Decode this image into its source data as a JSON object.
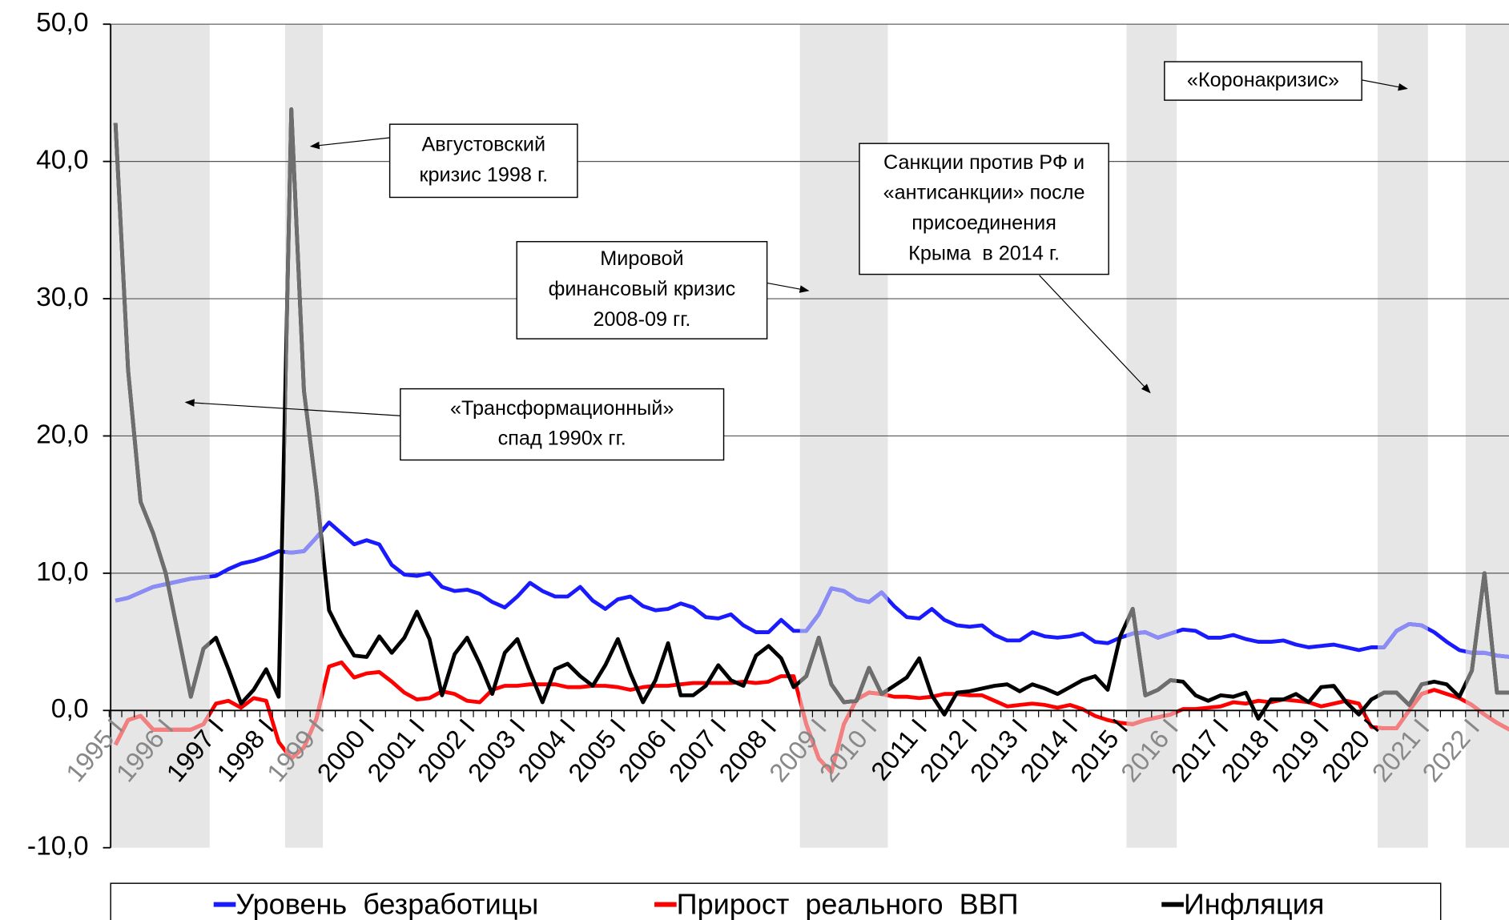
{
  "chart_data": {
    "type": "line",
    "categories": [
      "1995 I",
      null,
      null,
      null,
      "1996 I",
      null,
      null,
      null,
      "1997 I",
      null,
      null,
      null,
      "1998 I",
      null,
      null,
      null,
      "1999 I",
      null,
      null,
      null,
      "2000 I",
      null,
      null,
      null,
      "2001 I",
      null,
      null,
      null,
      "2002 I",
      null,
      null,
      null,
      "2003 I",
      null,
      null,
      null,
      "2004 I",
      null,
      null,
      null,
      "2005 I",
      null,
      null,
      null,
      "2006 I",
      null,
      null,
      null,
      "2007 I",
      null,
      null,
      null,
      "2008 I",
      null,
      null,
      null,
      "2009 I",
      null,
      null,
      null,
      "2010 I",
      null,
      null,
      null,
      "2011 I",
      null,
      null,
      null,
      "2012 I",
      null,
      null,
      null,
      "2013 I",
      null,
      null,
      null,
      "2014 I",
      null,
      null,
      null,
      "2015 I",
      null,
      null,
      null,
      "2016 I",
      null,
      null,
      null,
      "2017 I",
      null,
      null,
      null,
      "2018 I",
      null,
      null,
      null,
      "2019 I",
      null,
      null,
      null,
      "2020 I",
      null,
      null,
      null,
      "2021 I",
      null,
      null,
      null,
      "2022 I",
      null,
      null,
      null
    ],
    "series": [
      {
        "name": "Уровень  безработицы",
        "color": "#1a1aff",
        "light_color": "#8c8cf5",
        "values": [
          8.0,
          8.2,
          8.6,
          9.0,
          9.2,
          9.4,
          9.6,
          9.7,
          9.8,
          10.3,
          10.7,
          10.9,
          11.2,
          11.6,
          11.5,
          11.6,
          12.6,
          13.7,
          12.9,
          12.1,
          12.4,
          12.1,
          10.6,
          9.9,
          9.8,
          10.0,
          9.0,
          8.7,
          8.8,
          8.5,
          7.9,
          7.5,
          8.3,
          9.3,
          8.7,
          8.3,
          8.3,
          9.0,
          8.0,
          7.4,
          8.1,
          8.3,
          7.6,
          7.3,
          7.4,
          7.8,
          7.5,
          6.8,
          6.7,
          7.0,
          6.2,
          5.7,
          5.7,
          6.6,
          5.8,
          5.8,
          7.0,
          8.9,
          8.7,
          8.1,
          7.9,
          8.6,
          7.6,
          6.8,
          6.7,
          7.4,
          6.6,
          6.2,
          6.1,
          6.2,
          5.5,
          5.1,
          5.1,
          5.7,
          5.4,
          5.3,
          5.4,
          5.6,
          5.0,
          4.9,
          5.3,
          5.6,
          5.7,
          5.3,
          5.6,
          5.9,
          5.8,
          5.3,
          5.3,
          5.5,
          5.2,
          5.0,
          5.0,
          5.1,
          4.8,
          4.6,
          4.7,
          4.8,
          4.6,
          4.4,
          4.6,
          4.6,
          5.8,
          6.3,
          6.2,
          5.7,
          5.0,
          4.4,
          4.2,
          4.2,
          4.0,
          3.9
        ]
      },
      {
        "name": "Прирост  реального  ВВП",
        "color": "#ff0000",
        "light_color": "#f28080",
        "values": [
          -2.5,
          -0.7,
          -0.4,
          -1.4,
          -1.4,
          -1.4,
          -1.4,
          -1.0,
          0.5,
          0.7,
          0.2,
          0.9,
          0.7,
          -2.3,
          -3.5,
          -2.7,
          -0.6,
          3.2,
          3.5,
          2.4,
          2.7,
          2.8,
          2.1,
          1.3,
          0.8,
          0.9,
          1.4,
          1.2,
          0.7,
          0.6,
          1.5,
          1.8,
          1.8,
          1.9,
          1.9,
          1.9,
          1.7,
          1.7,
          1.8,
          1.8,
          1.7,
          1.5,
          1.7,
          1.8,
          1.8,
          1.9,
          2.0,
          2.0,
          2.0,
          2.0,
          2.1,
          2.0,
          2.1,
          2.5,
          2.5,
          -1.0,
          -3.5,
          -4.5,
          -1.0,
          0.8,
          1.3,
          1.2,
          1.0,
          1.0,
          0.9,
          1.0,
          1.2,
          1.2,
          1.1,
          1.1,
          0.7,
          0.3,
          0.4,
          0.5,
          0.4,
          0.2,
          0.4,
          0.1,
          -0.4,
          -0.7,
          -0.9,
          -1.0,
          -0.7,
          -0.5,
          -0.3,
          0.1,
          0.1,
          0.2,
          0.3,
          0.6,
          0.5,
          0.7,
          0.6,
          0.8,
          0.7,
          0.6,
          0.3,
          0.5,
          0.7,
          0.5,
          -1.2,
          -1.3,
          -1.3,
          0.0,
          1.2,
          1.5,
          1.2,
          0.9,
          0.4,
          -0.3,
          -0.9,
          -1.4
        ]
      },
      {
        "name": "Инфляция",
        "color": "#000000",
        "light_color": "#6e6e6e",
        "values": [
          42.8,
          24.8,
          15.2,
          12.9,
          10.0,
          5.5,
          1.0,
          4.5,
          5.3,
          3.0,
          0.5,
          1.5,
          3.0,
          1.0,
          43.8,
          23.3,
          16.0,
          7.3,
          5.5,
          4.0,
          3.9,
          5.4,
          4.2,
          5.3,
          7.2,
          5.2,
          1.1,
          4.1,
          5.3,
          3.4,
          1.2,
          4.2,
          5.2,
          2.8,
          0.6,
          3.0,
          3.4,
          2.5,
          1.8,
          3.3,
          5.2,
          2.7,
          0.6,
          2.2,
          4.9,
          1.1,
          1.1,
          1.8,
          3.3,
          2.2,
          1.8,
          4.0,
          4.7,
          3.8,
          1.7,
          2.5,
          5.3,
          1.9,
          0.6,
          0.7,
          3.1,
          1.2,
          1.8,
          2.4,
          3.8,
          1.1,
          -0.3,
          1.3,
          1.4,
          1.6,
          1.8,
          1.9,
          1.4,
          1.9,
          1.6,
          1.2,
          1.7,
          2.2,
          2.5,
          1.5,
          5.4,
          7.4,
          1.1,
          1.5,
          2.2,
          2.1,
          1.1,
          0.7,
          1.1,
          1.0,
          1.3,
          -0.6,
          0.8,
          0.8,
          1.2,
          0.6,
          1.7,
          1.8,
          0.6,
          -0.3,
          0.8,
          1.3,
          1.3,
          0.4,
          1.9,
          2.1,
          1.9,
          1.0,
          2.9,
          10.0,
          1.3,
          1.3
        ]
      }
    ],
    "ylim": [
      -10,
      50
    ],
    "yticks": [
      {
        "value": -10,
        "label": "-10,0"
      },
      {
        "value": 0,
        "label": "0,0"
      },
      {
        "value": 10,
        "label": "10,0"
      },
      {
        "value": 20,
        "label": "20,0"
      },
      {
        "value": 30,
        "label": "30,0"
      },
      {
        "value": 40,
        "label": "40,0"
      },
      {
        "value": 50,
        "label": "50,0"
      }
    ],
    "grid": true,
    "shaded_quarters": [
      [
        0,
        7
      ],
      [
        14,
        16
      ],
      [
        55,
        61
      ],
      [
        81,
        84
      ],
      [
        101,
        104
      ],
      [
        108,
        111
      ]
    ],
    "annotations": [
      {
        "lines": [
          "«Трансформационный»",
          "спад 1990х гг."
        ]
      },
      {
        "lines": [
          "Августовский",
          "кризис 1998 г."
        ]
      },
      {
        "lines": [
          "Мировой",
          "финансовый кризис",
          "2008-09 гг."
        ]
      },
      {
        "lines": [
          "Санкции против РФ и",
          "«антисанкции» после",
          "присоединения",
          "Крыма  в 2014 г."
        ]
      },
      {
        "lines": [
          "«Коронакризис»"
        ]
      }
    ]
  }
}
